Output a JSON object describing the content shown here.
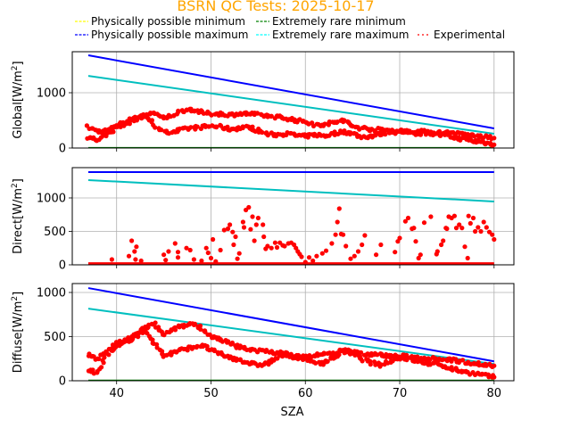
{
  "title": "BSRN QC Tests: 2025-10-17",
  "legend": [
    {
      "label": "Physically possible minimum",
      "color": "#ffff00",
      "style": "dashed"
    },
    {
      "label": "Extremely rare minimum",
      "color": "#008000",
      "style": "dashed"
    },
    {
      "label": "Physically possible maximum",
      "color": "#0000ff",
      "style": "dashed"
    },
    {
      "label": "Extremely rare maximum",
      "color": "#00ffff",
      "style": "dashed"
    },
    {
      "label": "Experimental",
      "color": "#ff0000",
      "style": "dotted"
    }
  ],
  "chart_data": [
    {
      "type": "scatter",
      "panel": "global",
      "ylabel": "Global[W/m²]",
      "ylabel_base": "Global[W/m",
      "xlabel": "",
      "xlim": [
        35.3,
        82.1
      ],
      "ylim": [
        0,
        1742
      ],
      "xticks": [
        40,
        50,
        60,
        70,
        80
      ],
      "yticks": [
        0,
        1000
      ],
      "ytick_labels": [
        "0",
        "1000"
      ],
      "grid": true,
      "lines": {
        "phys_max": {
          "color": "#0000ff",
          "x": [
            37,
            80
          ],
          "y": [
            1677,
            355
          ]
        },
        "rare_max": {
          "color": "#00bfbf",
          "x": [
            37,
            80
          ],
          "y": [
            1305,
            258
          ]
        },
        "phys_min": {
          "color": "#ffff00",
          "x": [
            37,
            80
          ],
          "y": [
            -4,
            -4
          ]
        },
        "rare_min": {
          "color": "#008000",
          "x": [
            37,
            80
          ],
          "y": [
            2,
            2
          ]
        }
      },
      "experimental_bands": [
        {
          "x": [
            37,
            38,
            39,
            40,
            41,
            42,
            43,
            44,
            45,
            46,
            47,
            48,
            49,
            50,
            51,
            52,
            53,
            54,
            55,
            56,
            57,
            58,
            59,
            60,
            61,
            62,
            63,
            64,
            65,
            66,
            67,
            68,
            69,
            70,
            71,
            72,
            73,
            74,
            75,
            76,
            77,
            78,
            79,
            80
          ],
          "y": [
            380,
            300,
            320,
            420,
            480,
            560,
            600,
            420,
            280,
            300,
            330,
            360,
            380,
            400,
            380,
            340,
            360,
            380,
            320,
            250,
            240,
            260,
            230,
            210,
            240,
            220,
            260,
            300,
            260,
            200,
            220,
            260,
            300,
            280,
            300,
            260,
            280,
            240,
            220,
            180,
            160,
            120,
            100,
            60
          ]
        },
        {
          "x": [
            37,
            38,
            39,
            40,
            41,
            42,
            43,
            44,
            45,
            46,
            47,
            48,
            49,
            50,
            51,
            52,
            53,
            54,
            55,
            56,
            57,
            58,
            59,
            60,
            61,
            62,
            63,
            64,
            65,
            66,
            67,
            68,
            69,
            70,
            71,
            72,
            73,
            74,
            75,
            76,
            77,
            78,
            79,
            80
          ],
          "y": [
            200,
            150,
            260,
            380,
            440,
            520,
            580,
            650,
            520,
            600,
            680,
            700,
            640,
            620,
            620,
            600,
            620,
            620,
            600,
            580,
            560,
            540,
            500,
            480,
            420,
            430,
            460,
            500,
            400,
            360,
            340,
            330,
            320,
            310,
            300,
            300,
            290,
            280,
            280,
            260,
            240,
            220,
            200,
            180
          ]
        }
      ]
    },
    {
      "type": "scatter",
      "panel": "direct",
      "ylabel": "Direct[W/m²]",
      "ylabel_base": "Direct[W/m",
      "xlabel": "",
      "xlim": [
        35.3,
        82.1
      ],
      "ylim": [
        0,
        1453
      ],
      "xticks": [
        40,
        50,
        60,
        70,
        80
      ],
      "yticks": [
        0,
        500,
        1000
      ],
      "ytick_labels": [
        "0",
        "500",
        "1000"
      ],
      "grid": true,
      "lines": {
        "phys_max": {
          "color": "#0000ff",
          "x": [
            37,
            80
          ],
          "y": [
            1387,
            1387
          ]
        },
        "rare_max": {
          "color": "#00bfbf",
          "x": [
            37,
            80
          ],
          "y": [
            1267,
            947
          ]
        },
        "phys_min": {
          "color": "#ffff00",
          "x": [
            37,
            80
          ],
          "y": [
            -4,
            -4
          ]
        },
        "rare_min": {
          "color": "#008000",
          "x": [
            37,
            80
          ],
          "y": [
            2,
            2
          ]
        }
      },
      "baseline": {
        "from": 37,
        "to": 80,
        "y": 5
      },
      "experimental_points": [
        [
          39.5,
          80
        ],
        [
          41.6,
          360
        ],
        [
          41.3,
          130
        ],
        [
          41.9,
          200
        ],
        [
          42.1,
          270
        ],
        [
          42.0,
          80
        ],
        [
          42.6,
          60
        ],
        [
          45.0,
          150
        ],
        [
          45.2,
          70
        ],
        [
          45.5,
          200
        ],
        [
          46.2,
          320
        ],
        [
          46.5,
          110
        ],
        [
          46.5,
          190
        ],
        [
          47.4,
          250
        ],
        [
          47.8,
          220
        ],
        [
          48.2,
          80
        ],
        [
          49.0,
          60
        ],
        [
          49.5,
          250
        ],
        [
          49.7,
          180
        ],
        [
          50.0,
          100
        ],
        [
          50.2,
          380
        ],
        [
          50.5,
          50
        ],
        [
          51.0,
          220
        ],
        [
          51.4,
          520
        ],
        [
          51.8,
          540
        ],
        [
          52.0,
          600
        ],
        [
          52.3,
          490
        ],
        [
          52.4,
          300
        ],
        [
          52.6,
          420
        ],
        [
          52.8,
          90
        ],
        [
          53.0,
          170
        ],
        [
          53.4,
          640
        ],
        [
          53.7,
          820
        ],
        [
          53.5,
          560
        ],
        [
          54.0,
          860
        ],
        [
          54.2,
          530
        ],
        [
          54.4,
          720
        ],
        [
          54.6,
          360
        ],
        [
          54.8,
          600
        ],
        [
          55.0,
          700
        ],
        [
          55.5,
          600
        ],
        [
          55.6,
          420
        ],
        [
          55.8,
          240
        ],
        [
          56.0,
          280
        ],
        [
          56.4,
          250
        ],
        [
          56.8,
          330
        ],
        [
          57.0,
          260
        ],
        [
          57.3,
          330
        ],
        [
          57.6,
          290
        ],
        [
          57.8,
          280
        ],
        [
          58.2,
          320
        ],
        [
          58.5,
          330
        ],
        [
          58.8,
          300
        ],
        [
          59.0,
          250
        ],
        [
          59.2,
          200
        ],
        [
          59.4,
          160
        ],
        [
          59.6,
          120
        ],
        [
          60.0,
          40
        ],
        [
          60.4,
          110
        ],
        [
          60.8,
          60
        ],
        [
          61.2,
          130
        ],
        [
          61.8,
          170
        ],
        [
          62.2,
          210
        ],
        [
          62.8,
          320
        ],
        [
          63.2,
          450
        ],
        [
          63.4,
          640
        ],
        [
          63.6,
          840
        ],
        [
          63.8,
          460
        ],
        [
          64.0,
          450
        ],
        [
          64.3,
          280
        ],
        [
          64.8,
          90
        ],
        [
          65.2,
          130
        ],
        [
          65.6,
          200
        ],
        [
          66.0,
          300
        ],
        [
          66.3,
          440
        ],
        [
          67.5,
          150
        ],
        [
          68.0,
          300
        ],
        [
          69.5,
          190
        ],
        [
          69.8,
          350
        ],
        [
          70.0,
          400
        ],
        [
          70.6,
          650
        ],
        [
          70.9,
          700
        ],
        [
          71.3,
          540
        ],
        [
          71.5,
          550
        ],
        [
          71.7,
          350
        ],
        [
          72.0,
          100
        ],
        [
          72.2,
          150
        ],
        [
          72.6,
          630
        ],
        [
          73.3,
          720
        ],
        [
          73.9,
          160
        ],
        [
          74.0,
          200
        ],
        [
          74.4,
          300
        ],
        [
          74.6,
          360
        ],
        [
          74.9,
          550
        ],
        [
          75.0,
          540
        ],
        [
          75.2,
          720
        ],
        [
          75.5,
          700
        ],
        [
          75.8,
          730
        ],
        [
          76.0,
          550
        ],
        [
          76.3,
          600
        ],
        [
          76.6,
          550
        ],
        [
          76.9,
          270
        ],
        [
          77.2,
          100
        ],
        [
          77.3,
          730
        ],
        [
          77.5,
          620
        ],
        [
          77.8,
          700
        ],
        [
          78.0,
          500
        ],
        [
          78.3,
          560
        ],
        [
          78.6,
          500
        ],
        [
          78.9,
          640
        ],
        [
          79.2,
          560
        ],
        [
          79.5,
          490
        ],
        [
          79.8,
          450
        ],
        [
          80.0,
          380
        ]
      ]
    },
    {
      "type": "scatter",
      "panel": "diffuse",
      "ylabel": "Diffuse[W/m²]",
      "ylabel_base": "Diffuse[W/m",
      "xlabel": "SZA",
      "xlim": [
        35.3,
        82.1
      ],
      "ylim": [
        0,
        1101
      ],
      "xticks": [
        40,
        50,
        60,
        70,
        80
      ],
      "xtick_labels": [
        "40",
        "50",
        "60",
        "70",
        "80"
      ],
      "yticks": [
        0,
        500,
        1000
      ],
      "ytick_labels": [
        "0",
        "500",
        "1000"
      ],
      "grid": true,
      "lines": {
        "phys_max": {
          "color": "#0000ff",
          "x": [
            37,
            80
          ],
          "y": [
            1050,
            220
          ]
        },
        "rare_max": {
          "color": "#00bfbf",
          "x": [
            37,
            80
          ],
          "y": [
            817,
            190
          ]
        },
        "phys_min": {
          "color": "#ffff00",
          "x": [
            37,
            80
          ],
          "y": [
            -4,
            -4
          ]
        },
        "rare_min": {
          "color": "#008000",
          "x": [
            37,
            80
          ],
          "y": [
            2,
            2
          ]
        }
      },
      "experimental_bands": [
        {
          "x": [
            37,
            38,
            39,
            40,
            41,
            42,
            43,
            44,
            45,
            46,
            47,
            48,
            49,
            50,
            51,
            52,
            53,
            54,
            55,
            56,
            57,
            58,
            59,
            60,
            61,
            62,
            63,
            64,
            65,
            66,
            67,
            68,
            69,
            70,
            71,
            72,
            73,
            74,
            75,
            76,
            77,
            78,
            79,
            80
          ],
          "y": [
            120,
            90,
            300,
            380,
            440,
            500,
            560,
            420,
            280,
            320,
            350,
            380,
            400,
            350,
            300,
            260,
            240,
            200,
            180,
            200,
            260,
            300,
            260,
            240,
            210,
            200,
            260,
            330,
            300,
            250,
            200,
            180,
            220,
            260,
            250,
            220,
            200,
            180,
            160,
            120,
            100,
            80,
            60,
            40
          ]
        },
        {
          "x": [
            37,
            38,
            39,
            40,
            41,
            42,
            43,
            44,
            45,
            46,
            47,
            48,
            49,
            50,
            51,
            52,
            53,
            54,
            55,
            56,
            57,
            58,
            59,
            60,
            61,
            62,
            63,
            64,
            65,
            66,
            67,
            68,
            69,
            70,
            71,
            72,
            73,
            74,
            75,
            76,
            77,
            78,
            79,
            80
          ],
          "y": [
            300,
            250,
            340,
            420,
            460,
            520,
            600,
            640,
            520,
            580,
            620,
            650,
            600,
            500,
            460,
            420,
            380,
            360,
            340,
            330,
            320,
            300,
            280,
            270,
            290,
            300,
            310,
            350,
            320,
            310,
            300,
            290,
            280,
            280,
            270,
            260,
            260,
            250,
            240,
            230,
            210,
            200,
            180,
            170
          ]
        }
      ]
    }
  ]
}
